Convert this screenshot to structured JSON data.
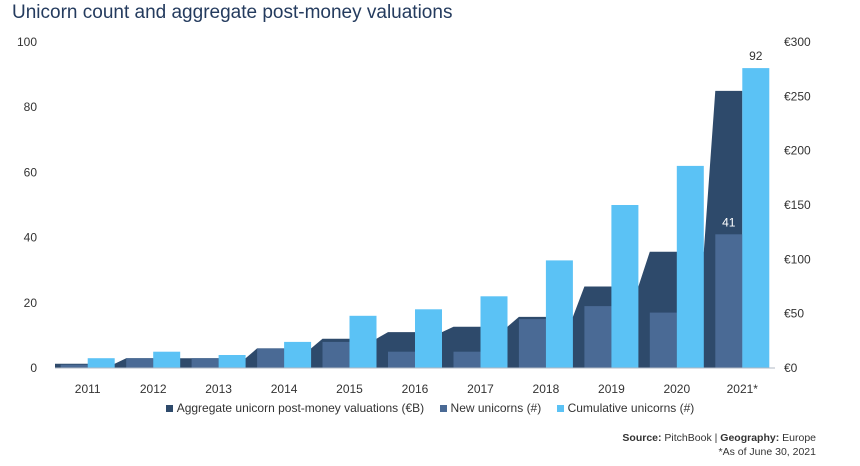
{
  "chart_data": {
    "type": "bar",
    "title": "Unicorn count and aggregate post-money valuations",
    "categories": [
      "2011",
      "2012",
      "2013",
      "2014",
      "2015",
      "2016",
      "2017",
      "2018",
      "2019",
      "2020",
      "2021*"
    ],
    "series": [
      {
        "name": "Aggregate unicorn post-money valuations (€B)",
        "kind": "area",
        "axis": "right",
        "color": "#2e4a6b",
        "values": [
          4,
          9,
          9,
          18,
          27,
          33,
          38,
          47,
          75,
          107,
          255
        ]
      },
      {
        "name": "New unicorns (#)",
        "kind": "bar",
        "axis": "left",
        "color": "#4a6a95",
        "values": [
          1,
          3,
          3,
          6,
          8,
          5,
          5,
          15,
          19,
          17,
          41
        ]
      },
      {
        "name": "Cumulative unicorns (#)",
        "kind": "bar",
        "axis": "left",
        "color": "#5bc2f5",
        "values": [
          3,
          5,
          4,
          8,
          16,
          18,
          22,
          33,
          50,
          62,
          92
        ]
      }
    ],
    "y_left": {
      "ylim": [
        0,
        100
      ],
      "ticks": [
        "0",
        "20",
        "40",
        "60",
        "80",
        "100"
      ]
    },
    "y_right": {
      "ylim": [
        0,
        300
      ],
      "ticks": [
        "€0",
        "€50",
        "€100",
        "€150",
        "€200",
        "€250",
        "€300"
      ]
    },
    "data_labels": [
      {
        "series": "New unicorns (#)",
        "category": "2021*",
        "text": "41"
      },
      {
        "series": "Cumulative unicorns (#)",
        "category": "2021*",
        "text": "92"
      }
    ],
    "grid": false,
    "legend_position": "bottom"
  },
  "footer": {
    "source_label": "Source:",
    "source_value": "PitchBook",
    "separator": "|",
    "geography_label": "Geography:",
    "geography_value": "Europe",
    "note": "*As of June 30, 2021"
  }
}
